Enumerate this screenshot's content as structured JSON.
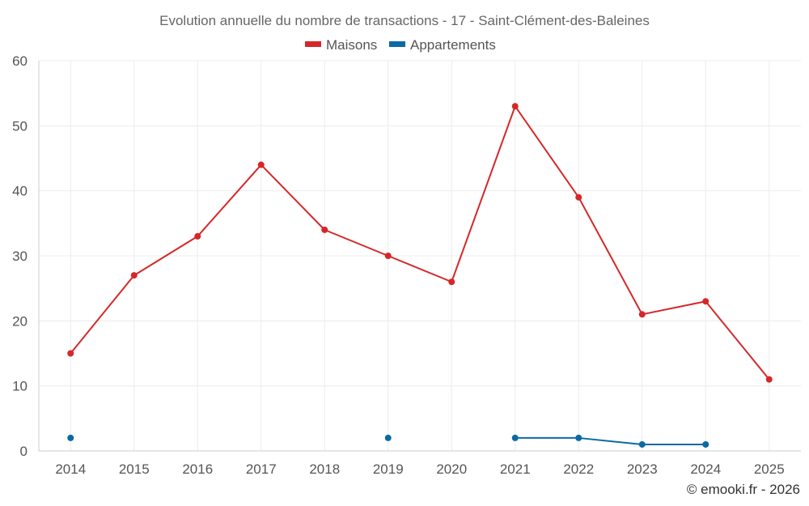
{
  "chart_data": {
    "type": "line",
    "title": "Evolution annuelle du nombre de transactions - 17 - Saint-Clément-des-Baleines",
    "categories": [
      "2014",
      "2015",
      "2016",
      "2017",
      "2018",
      "2019",
      "2020",
      "2021",
      "2022",
      "2023",
      "2024",
      "2025"
    ],
    "ylim": [
      0,
      60
    ],
    "yticks": [
      0,
      10,
      20,
      30,
      40,
      50,
      60
    ],
    "xlabel": "",
    "ylabel": "",
    "grid": true,
    "legend_position": "top-center",
    "series": [
      {
        "name": "Maisons",
        "color": "#d62728",
        "values": [
          15,
          27,
          33,
          44,
          34,
          30,
          26,
          53,
          39,
          21,
          23,
          11
        ]
      },
      {
        "name": "Appartements",
        "color": "#0b6aa2",
        "values": [
          2,
          null,
          null,
          null,
          null,
          2,
          null,
          2,
          2,
          1,
          1,
          null
        ]
      }
    ],
    "credit": "© emooki.fr - 2026"
  }
}
